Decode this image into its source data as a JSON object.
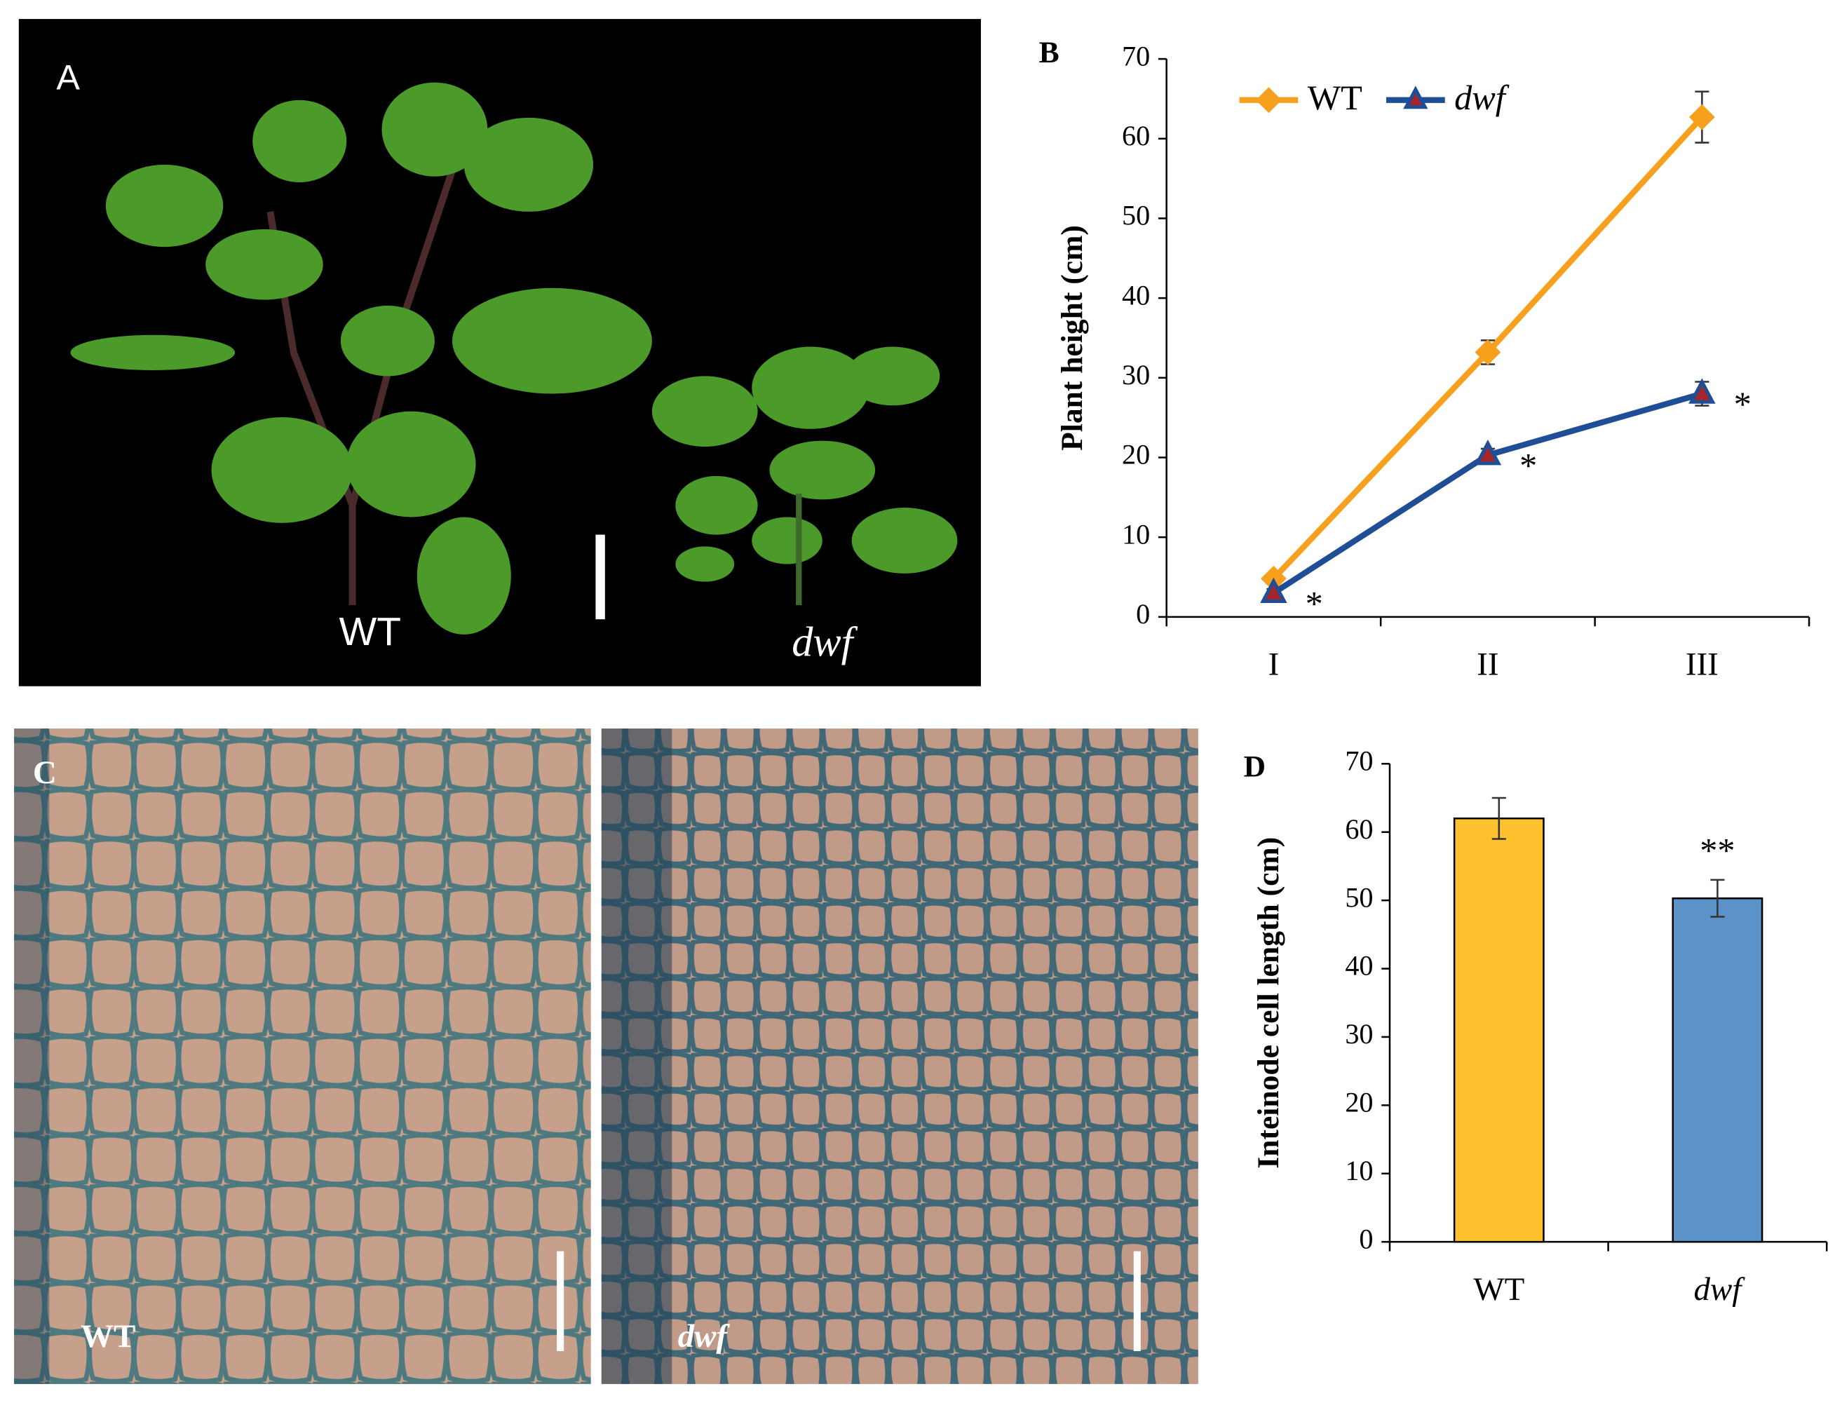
{
  "panels": {
    "a": {
      "label": "A",
      "captions": [
        "WT",
        "dwf"
      ]
    },
    "c": {
      "label": "C",
      "captions": [
        "WT",
        "dwf"
      ]
    }
  },
  "chart_data": [
    {
      "type": "line",
      "panel_label": "B",
      "ylabel": "Plant height (cm)",
      "categories": [
        "I",
        "II",
        "III"
      ],
      "series": [
        {
          "name": "WT",
          "color": "#f7a01d",
          "values": [
            4.8,
            33.2,
            62.7
          ],
          "errors": [
            0.5,
            1.5,
            3.2
          ]
        },
        {
          "name": "dwf",
          "color": "#1f4e96",
          "values": [
            3.0,
            20.3,
            28.0
          ],
          "errors": [
            0.5,
            0.8,
            1.5
          ],
          "significance": [
            "*",
            "*",
            "*"
          ]
        }
      ],
      "ylim": [
        0,
        70
      ],
      "yticks": [
        0,
        10,
        20,
        30,
        40,
        50,
        60,
        70
      ]
    },
    {
      "type": "bar",
      "panel_label": "D",
      "ylabel": "Inteinode cell length (cm)",
      "categories": [
        "WT",
        "dwf"
      ],
      "values": [
        62.0,
        50.3
      ],
      "errors": [
        3.0,
        2.7
      ],
      "colors": [
        "#fdc12e",
        "#5b93c8"
      ],
      "significance": [
        null,
        "**"
      ],
      "ylim": [
        0,
        70
      ],
      "yticks": [
        0,
        10,
        20,
        30,
        40,
        50,
        60,
        70
      ]
    }
  ]
}
